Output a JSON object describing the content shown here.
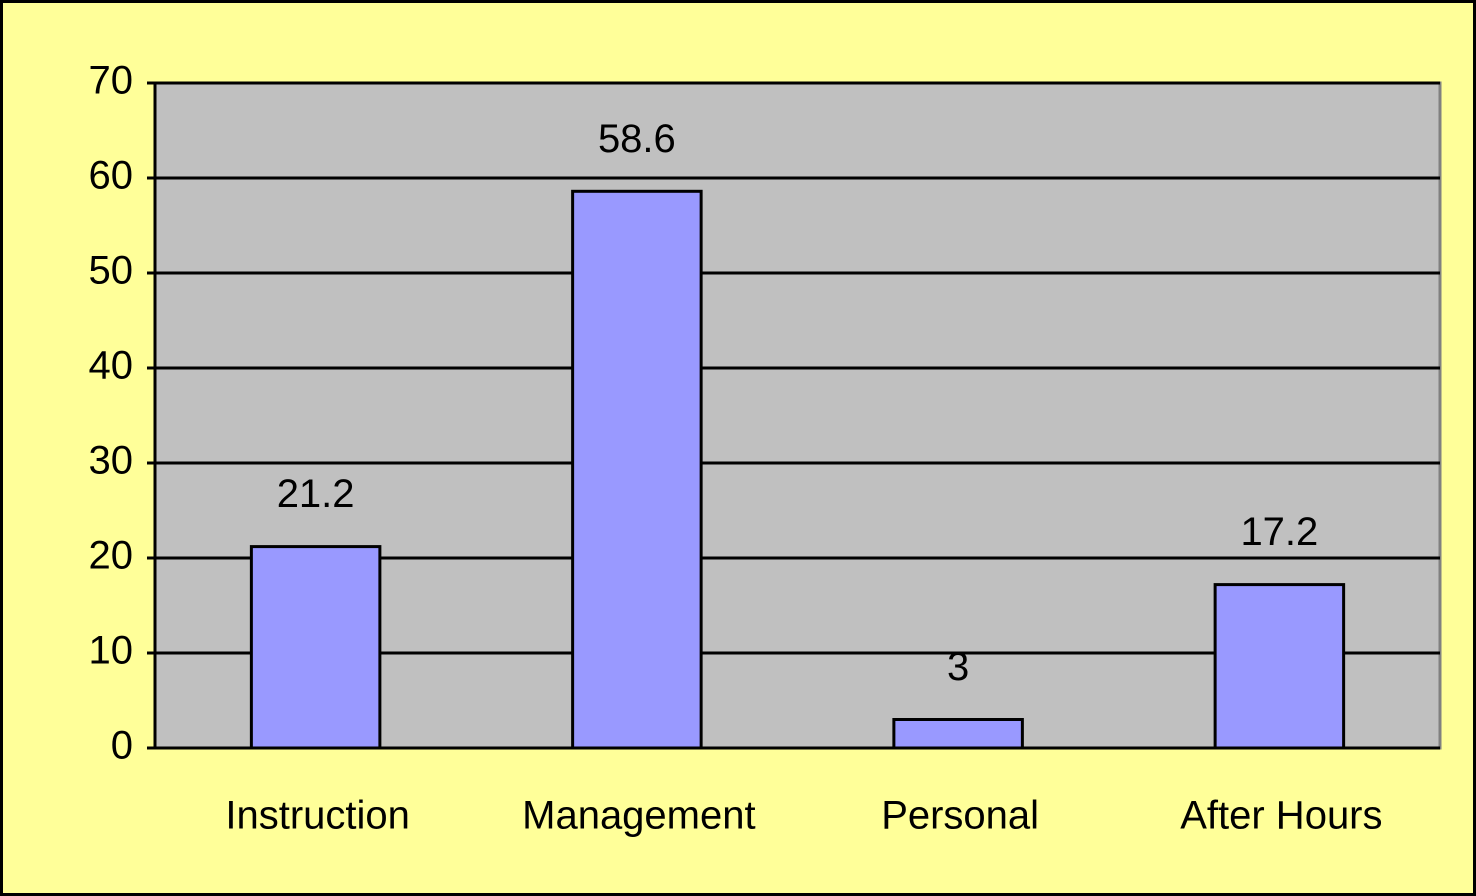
{
  "chart_data": {
    "type": "bar",
    "categories": [
      "Instruction",
      "Management",
      "Personal",
      "After Hours"
    ],
    "values": [
      21.2,
      58.6,
      3,
      17.2
    ],
    "color": "#9999ff",
    "ylim": [
      0,
      70
    ],
    "yticks": [
      0,
      10,
      20,
      30,
      40,
      50,
      60,
      70
    ],
    "grid": true
  }
}
